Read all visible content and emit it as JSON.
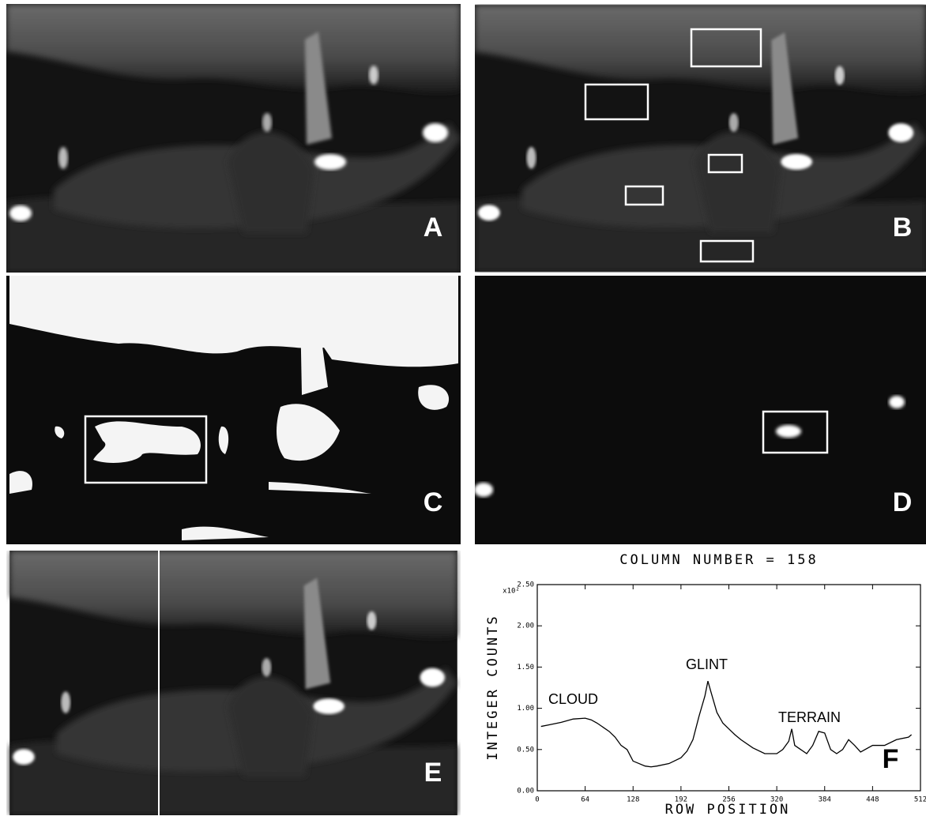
{
  "panels": [
    {
      "label": "A"
    },
    {
      "label": "B"
    },
    {
      "label": "C"
    },
    {
      "label": "D"
    },
    {
      "label": "E"
    }
  ],
  "chart_data": {
    "type": "line",
    "label": "F",
    "title": "COLUMN NUMBER = 158",
    "x_label": "ROW POSITION",
    "y_label": "INTEGER COUNTS",
    "y_multiplier": "x10²",
    "annotations": [
      {
        "text": "CLOUD"
      },
      {
        "text": "GLINT"
      },
      {
        "text": "TERRAIN"
      }
    ],
    "xlim": [
      0,
      512
    ],
    "xticks": [
      0,
      64,
      128,
      192,
      256,
      320,
      384,
      448,
      512
    ],
    "ylim": [
      0,
      2.5
    ],
    "yticks": [
      {
        "value": 0,
        "label": "0.00"
      },
      {
        "value": 0.5,
        "label": "0.50"
      },
      {
        "value": 1,
        "label": "1.00"
      },
      {
        "value": 1.5,
        "label": "1.50"
      },
      {
        "value": 2,
        "label": "2.00"
      },
      {
        "value": 2.5,
        "label": "2.50"
      }
    ],
    "series": [
      {
        "color": "#000000",
        "x": [
          5,
          16,
          32,
          48,
          64,
          72,
          80,
          96,
          104,
          112,
          120,
          128,
          136,
          144,
          152,
          160,
          176,
          192,
          200,
          208,
          216,
          224,
          228,
          232,
          240,
          248,
          256,
          264,
          272,
          288,
          304,
          320,
          328,
          336,
          340,
          344,
          352,
          360,
          368,
          376,
          384,
          392,
          400,
          408,
          416,
          424,
          432,
          448,
          464,
          480,
          496,
          500
        ],
        "values": [
          0.78,
          0.8,
          0.83,
          0.87,
          0.88,
          0.86,
          0.82,
          0.72,
          0.65,
          0.55,
          0.5,
          0.36,
          0.33,
          0.3,
          0.29,
          0.3,
          0.33,
          0.4,
          0.48,
          0.62,
          0.9,
          1.15,
          1.33,
          1.2,
          0.95,
          0.82,
          0.75,
          0.68,
          0.62,
          0.52,
          0.45,
          0.45,
          0.5,
          0.6,
          0.75,
          0.55,
          0.5,
          0.45,
          0.55,
          0.72,
          0.7,
          0.5,
          0.45,
          0.5,
          0.62,
          0.55,
          0.47,
          0.55,
          0.55,
          0.62,
          0.65,
          0.68
        ]
      }
    ]
  }
}
